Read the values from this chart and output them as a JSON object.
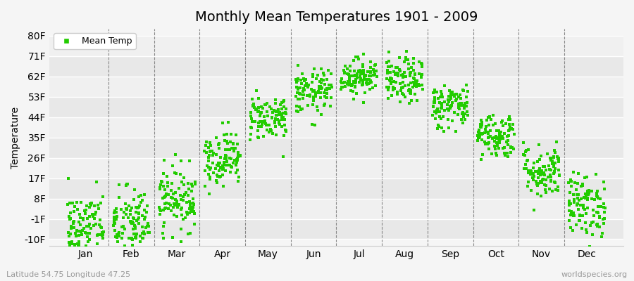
{
  "title": "Monthly Mean Temperatures 1901 - 2009",
  "ylabel": "Temperature",
  "xlabel_labels": [
    "Jan",
    "Feb",
    "Mar",
    "Apr",
    "May",
    "Jun",
    "Jul",
    "Aug",
    "Sep",
    "Oct",
    "Nov",
    "Dec"
  ],
  "ytick_labels": [
    "-10F",
    "-1F",
    "8F",
    "17F",
    "26F",
    "35F",
    "44F",
    "53F",
    "62F",
    "71F",
    "80F"
  ],
  "ytick_values": [
    -10,
    -1,
    8,
    17,
    26,
    35,
    44,
    53,
    62,
    71,
    80
  ],
  "ylim": [
    -13,
    83
  ],
  "legend_label": "Mean Temp",
  "dot_color": "#22cc00",
  "background_color": "#f5f5f5",
  "grid_color": "#ffffff",
  "title_fontsize": 14,
  "axis_fontsize": 10,
  "footnote_left": "Latitude 54.75 Longitude 47.25",
  "footnote_right": "worldspecies.org",
  "num_years": 109,
  "monthly_means_F": [
    -5,
    -3,
    8,
    26,
    44,
    55,
    62,
    60,
    49,
    36,
    20,
    5
  ],
  "monthly_stds_F": [
    8,
    8,
    7,
    6,
    5,
    5,
    4,
    5,
    5,
    5,
    6,
    7
  ]
}
